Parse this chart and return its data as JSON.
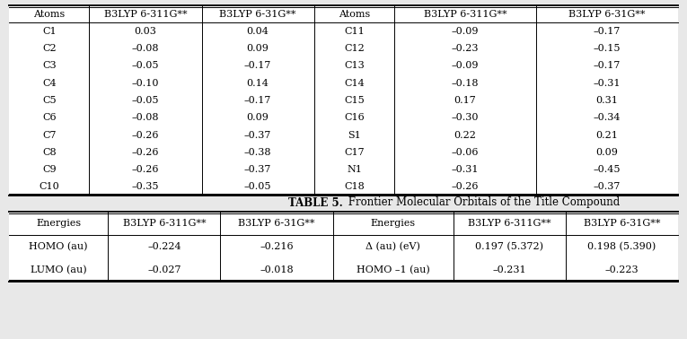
{
  "table4_headers": [
    "Atoms",
    "B3LYP 6-311G**",
    "B3LYP 6-31G**",
    "Atoms",
    "B3LYP 6-311G**",
    "B3LYP 6-31G**"
  ],
  "table4_rows": [
    [
      "C1",
      "0.03",
      "0.04",
      "C11",
      "–0.09",
      "–0.17"
    ],
    [
      "C2",
      "–0.08",
      "0.09",
      "C12",
      "–0.23",
      "–0.15"
    ],
    [
      "C3",
      "–0.05",
      "–0.17",
      "C13",
      "–0.09",
      "–0.17"
    ],
    [
      "C4",
      "–0.10",
      "0.14",
      "C14",
      "–0.18",
      "–0.31"
    ],
    [
      "C5",
      "–0.05",
      "–0.17",
      "C15",
      "0.17",
      "0.31"
    ],
    [
      "C6",
      "–0.08",
      "0.09",
      "C16",
      "–0.30",
      "–0.34"
    ],
    [
      "C7",
      "–0.26",
      "–0.37",
      "S1",
      "0.22",
      "0.21"
    ],
    [
      "C8",
      "–0.26",
      "–0.38",
      "C17",
      "–0.06",
      "0.09"
    ],
    [
      "C9",
      "–0.26",
      "–0.37",
      "N1",
      "–0.31",
      "–0.45"
    ],
    [
      "C10",
      "–0.35",
      "–0.05",
      "C18",
      "–0.26",
      "–0.37"
    ]
  ],
  "table5_title_bold": "TABLE 5.",
  "table5_title_normal": " Frontier Molecular Orbitals of the Title Compound",
  "table5_headers": [
    "Energies",
    "B3LYP 6-311G**",
    "B3LYP 6-31G**",
    "Energies",
    "B3LYP 6-311G**",
    "B3LYP 6-31G**"
  ],
  "table5_rows": [
    [
      "HOMO (au)",
      "–0.224",
      "–0.216",
      "Δ (au) (eV)",
      "0.197 (5.372)",
      "0.198 (5.390)"
    ],
    [
      "LUMO (au)",
      "–0.027",
      "–0.018",
      "HOMO –1 (au)",
      "–0.231",
      "–0.223"
    ]
  ],
  "bg_color": "#e8e8e8",
  "header_fontsize": 8.0,
  "cell_fontsize": 8.0,
  "title_fontsize": 8.5
}
